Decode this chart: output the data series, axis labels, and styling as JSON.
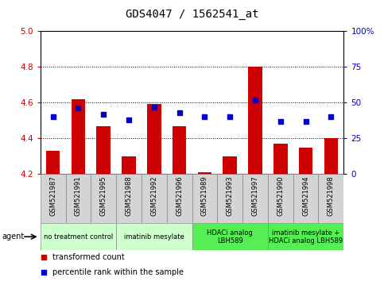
{
  "title": "GDS4047 / 1562541_at",
  "samples": [
    "GSM521987",
    "GSM521991",
    "GSM521995",
    "GSM521988",
    "GSM521992",
    "GSM521996",
    "GSM521989",
    "GSM521993",
    "GSM521997",
    "GSM521990",
    "GSM521994",
    "GSM521998"
  ],
  "bar_values": [
    4.33,
    4.62,
    4.47,
    4.3,
    4.59,
    4.47,
    4.21,
    4.3,
    4.8,
    4.37,
    4.35,
    4.4
  ],
  "dot_values": [
    40,
    46,
    42,
    38,
    47,
    43,
    40,
    40,
    52,
    37,
    37,
    40
  ],
  "bar_color": "#cc0000",
  "dot_color": "#0000cc",
  "ylim_left": [
    4.2,
    5.0
  ],
  "ylim_right": [
    0,
    100
  ],
  "yticks_left": [
    4.2,
    4.4,
    4.6,
    4.8,
    5.0
  ],
  "yticks_right": [
    0,
    25,
    50,
    75,
    100
  ],
  "ytick_labels_right": [
    "0",
    "25",
    "50",
    "75",
    "100%"
  ],
  "grid_values": [
    4.4,
    4.6,
    4.8
  ],
  "groups": [
    {
      "label": "no treatment control",
      "start": 0,
      "end": 3,
      "color": "#ccffcc"
    },
    {
      "label": "imatinib mesylate",
      "start": 3,
      "end": 6,
      "color": "#ccffcc"
    },
    {
      "label": "HDACi analog\nLBH589",
      "start": 6,
      "end": 9,
      "color": "#55ee55"
    },
    {
      "label": "imatinib mesylate +\nHDACi analog LBH589",
      "start": 9,
      "end": 12,
      "color": "#55ee55"
    }
  ],
  "legend_items": [
    {
      "label": "transformed count",
      "color": "#cc0000"
    },
    {
      "label": "percentile rank within the sample",
      "color": "#0000cc"
    }
  ],
  "agent_label": "agent",
  "background_color": "#ffffff",
  "tick_color_left": "#cc0000",
  "tick_color_right": "#0000cc",
  "sample_box_color": "#d4d4d4",
  "title_fontsize": 10,
  "bar_width": 0.55
}
